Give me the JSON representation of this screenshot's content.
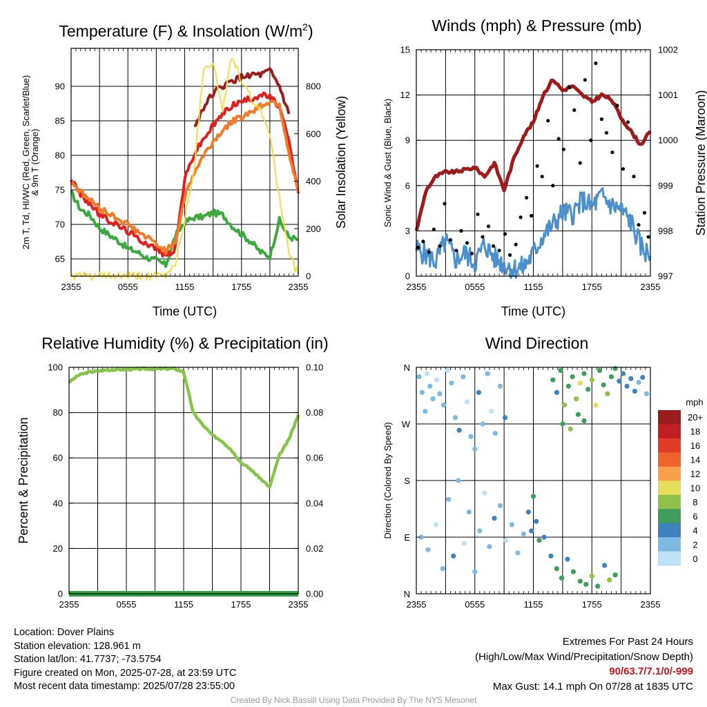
{
  "x_ticks": [
    "2355",
    "0555",
    "1155",
    "1755",
    "2355"
  ],
  "legend_colors": [
    "#9b1c1c",
    "#c21f25",
    "#e23b2a",
    "#f1632c",
    "#f8a14a",
    "#e6de5a",
    "#8fc24a",
    "#3f9e5c",
    "#3f82bf",
    "#7fb9e3",
    "#bde2f5"
  ],
  "chart_data": [
    {
      "type": "line",
      "title": "Temperature (F) & Insolation (W/m²)",
      "title_parts": {
        "main": "Temperature (F) & Insolation (W/m",
        "sup": "2",
        "close": ")"
      },
      "xlabel": "Time (UTC)",
      "ylabel_left_lines": [
        "2m T, Td, HI/WC (Red, Green, Scarlet/Blue)",
        "& 9m T (Orange)"
      ],
      "ylabel_right": "Solar Insolation (Yellow)",
      "ylim_left": [
        62.5,
        95.5
      ],
      "yticks_left": [
        "65",
        "70",
        "75",
        "80",
        "85",
        "90"
      ],
      "ylim_right": [
        0,
        960
      ],
      "yticks_right": [
        "0",
        "200",
        "400",
        "600",
        "800"
      ],
      "x": [
        0,
        1,
        2,
        3,
        4,
        5,
        6,
        7,
        8,
        9,
        10,
        11,
        12,
        13,
        14,
        15,
        16,
        17,
        18,
        19,
        20,
        21,
        22,
        23,
        24
      ],
      "series": [
        {
          "color": "#3ba93d",
          "axis": "left",
          "values": [
            74.6,
            72.2,
            71.3,
            69.5,
            68.5,
            67.6,
            66.5,
            66.0,
            65.2,
            64.8,
            64.1,
            68.3,
            70.3,
            71.0,
            71.1,
            71.7,
            71.4,
            69.8,
            68.6,
            67.5,
            66.0,
            65.4,
            70.6,
            68.2,
            67.8
          ]
        },
        {
          "color": "#e11f1f",
          "axis": "left",
          "values": [
            76.6,
            74.3,
            73.0,
            71.4,
            70.6,
            69.8,
            69.0,
            68.0,
            67.3,
            66.5,
            65.5,
            66.4,
            76.6,
            80.2,
            82.4,
            84.3,
            86.0,
            87.3,
            87.8,
            88.2,
            88.8,
            88.5,
            87.0,
            82.0,
            74.5
          ]
        },
        {
          "color": "#9b1c1c",
          "axis": "left",
          "values": [
            null,
            null,
            null,
            null,
            null,
            null,
            null,
            null,
            null,
            null,
            null,
            null,
            null,
            84.0,
            87.0,
            89.0,
            90.0,
            90.7,
            91.3,
            91.7,
            91.6,
            92.2,
            90.0,
            86.0,
            null
          ]
        },
        {
          "color": "#f27b2b",
          "axis": "left",
          "values": [
            76.3,
            74.7,
            73.6,
            72.3,
            71.6,
            70.8,
            70.0,
            69.0,
            68.1,
            67.2,
            66.2,
            67.3,
            74.0,
            77.5,
            80.0,
            82.0,
            83.6,
            84.9,
            85.6,
            86.3,
            87.2,
            87.8,
            87.5,
            80.5,
            74.6
          ]
        },
        {
          "color": "#f5dc4c",
          "axis": "right",
          "values": [
            0,
            0,
            0,
            0,
            0,
            0,
            0,
            0,
            0,
            0,
            0,
            55,
            230,
            460,
            880,
            900,
            700,
            930,
            820,
            750,
            690,
            610,
            330,
            90,
            10
          ]
        }
      ]
    },
    {
      "type": "line",
      "title": "Winds (mph) & Pressure (mb)",
      "xlabel": "Time (UTC)",
      "ylabel_left": "Sonic Wind & Gust (Blue, Black)",
      "ylabel_right": "Station Pressure (Maroon)",
      "ylim_left": [
        0,
        15
      ],
      "yticks_left": [
        "0",
        "3",
        "6",
        "9",
        "12",
        "15"
      ],
      "ylim_right": [
        997,
        1002
      ],
      "yticks_right": [
        "997",
        "998",
        "999",
        "1000",
        "1001",
        "1002"
      ],
      "x": [
        0,
        1,
        2,
        3,
        4,
        5,
        6,
        7,
        8,
        9,
        10,
        11,
        12,
        13,
        14,
        15,
        16,
        17,
        18,
        19,
        20,
        21,
        22,
        23,
        24
      ],
      "series": [
        {
          "name": "Station Pressure",
          "color": "#9e1b1b",
          "axis": "right",
          "values": [
            998.0,
            998.9,
            999.2,
            999.3,
            999.3,
            999.35,
            999.4,
            999.2,
            999.5,
            998.9,
            999.6,
            1000.1,
            1000.4,
            1001.0,
            1001.35,
            1001.1,
            1001.2,
            1001.0,
            1000.85,
            1001.0,
            1000.9,
            1000.5,
            1000.2,
            999.9,
            1000.2
          ]
        },
        {
          "name": "Sonic Wind",
          "color": "#4b8fcc",
          "axis": "left",
          "values": [
            1.8,
            1.4,
            1.0,
            2.3,
            1.1,
            1.5,
            0.9,
            2.1,
            1.2,
            0.8,
            0.5,
            0.6,
            1.5,
            2.7,
            3.4,
            4.2,
            4.1,
            5.0,
            4.6,
            5.3,
            4.7,
            4.4,
            3.6,
            2.0,
            1.3
          ]
        },
        {
          "name": "Gust",
          "type": "scatter",
          "color": "#000000",
          "axis": "left",
          "x": [
            0.2,
            0.7,
            1.3,
            1.8,
            2.4,
            2.9,
            3.5,
            4.1,
            4.6,
            5.2,
            5.7,
            6.3,
            6.8,
            7.4,
            7.9,
            8.5,
            9.1,
            9.6,
            10.2,
            10.7,
            11.3,
            11.8,
            12.4,
            12.9,
            13.5,
            14.0,
            14.6,
            15.1,
            15.7,
            16.2,
            16.8,
            17.3,
            17.9,
            18.4,
            19.0,
            19.5,
            20.1,
            20.6,
            21.2,
            21.7,
            22.3,
            22.8,
            23.4,
            23.8
          ],
          "values": [
            1.9,
            2.3,
            1.6,
            3.1,
            2.0,
            4.8,
            2.4,
            1.7,
            3.0,
            2.2,
            1.5,
            4.1,
            2.6,
            3.3,
            2.0,
            1.7,
            2.8,
            1.4,
            2.1,
            3.9,
            5.2,
            4.0,
            7.3,
            6.6,
            10.3,
            6.0,
            9.1,
            8.4,
            12.5,
            11.0,
            7.5,
            13.0,
            9.0,
            14.1,
            10.4,
            9.5,
            8.2,
            11.3,
            7.1,
            10.2,
            6.6,
            3.4,
            4.2,
            2.6
          ]
        }
      ]
    },
    {
      "type": "line",
      "title": "Relative Humidity (%) & Precipitation (in)",
      "xlabel": "",
      "ylabel_left": "Percent & Precipitation",
      "ylim_left": [
        0,
        100
      ],
      "yticks_left": [
        "0",
        "20",
        "40",
        "60",
        "80",
        "100"
      ],
      "ylim_right": [
        0,
        0.1
      ],
      "yticks_right": [
        "0.00",
        "0.02",
        "0.04",
        "0.06",
        "0.08",
        "0.10"
      ],
      "x": [
        0,
        1,
        2,
        3,
        4,
        5,
        6,
        7,
        8,
        9,
        10,
        11,
        12,
        13,
        14,
        15,
        16,
        17,
        18,
        19,
        20,
        21,
        22,
        23,
        24
      ],
      "series": [
        {
          "name": "Relative Humidity",
          "color": "#86c44a",
          "axis": "left",
          "values": [
            93.5,
            96.5,
            97.8,
            98.4,
            98.8,
            99.0,
            99.1,
            99.2,
            99.3,
            99.3,
            99.4,
            99.4,
            98.0,
            80.0,
            74.5,
            70.0,
            67.5,
            63.5,
            58.0,
            55.0,
            51.0,
            47.0,
            61.0,
            68.0,
            79.0
          ]
        },
        {
          "name": "Precipitation",
          "color": "#2f9f45",
          "axis": "right",
          "values": [
            0,
            0,
            0,
            0,
            0,
            0,
            0,
            0,
            0,
            0,
            0,
            0,
            0,
            0,
            0,
            0,
            0,
            0,
            0,
            0,
            0,
            0,
            0,
            0,
            0
          ]
        }
      ]
    },
    {
      "type": "scatter",
      "title": "Wind Direction",
      "ylabel_left": "Direction (Colored By Speed)",
      "yticks_left": [
        "N",
        "E",
        "S",
        "W",
        "N"
      ],
      "ylim": [
        0,
        360
      ],
      "colorbar_title": "mph",
      "colorbar_labels": [
        "20+",
        "18",
        "16",
        "14",
        "12",
        "10",
        "8",
        "6",
        "4",
        "2",
        "0"
      ],
      "points": [
        [
          0.3,
          345,
          1
        ],
        [
          0.6,
          320,
          1
        ],
        [
          0.9,
          290,
          1
        ],
        [
          1.1,
          350,
          0
        ],
        [
          1.4,
          330,
          1
        ],
        [
          1.7,
          310,
          1
        ],
        [
          2.1,
          340,
          0
        ],
        [
          2.4,
          318,
          1
        ],
        [
          2.8,
          300,
          1
        ],
        [
          3.2,
          355,
          0
        ],
        [
          3.6,
          335,
          1
        ],
        [
          4.0,
          280,
          1
        ],
        [
          4.4,
          260,
          2
        ],
        [
          4.8,
          345,
          1
        ],
        [
          5.2,
          305,
          0
        ],
        [
          5.6,
          250,
          1
        ],
        [
          6.0,
          230,
          1
        ],
        [
          6.4,
          320,
          2
        ],
        [
          6.8,
          270,
          1
        ],
        [
          7.3,
          350,
          1
        ],
        [
          7.7,
          290,
          0
        ],
        [
          8.1,
          255,
          1
        ],
        [
          8.6,
          330,
          1
        ],
        [
          9.1,
          280,
          2
        ],
        [
          0.5,
          90,
          1
        ],
        [
          1.2,
          70,
          1
        ],
        [
          2.0,
          110,
          0
        ],
        [
          2.7,
          40,
          1
        ],
        [
          3.3,
          150,
          1
        ],
        [
          3.8,
          60,
          2
        ],
        [
          4.3,
          180,
          1
        ],
        [
          4.9,
          80,
          0
        ],
        [
          5.4,
          130,
          1
        ],
        [
          6.0,
          35,
          1
        ],
        [
          6.5,
          100,
          1
        ],
        [
          7.0,
          160,
          0
        ],
        [
          7.5,
          75,
          1
        ],
        [
          8.0,
          120,
          2
        ],
        [
          8.6,
          140,
          1
        ],
        [
          9.2,
          85,
          0
        ],
        [
          9.8,
          110,
          1
        ],
        [
          10.4,
          65,
          1
        ],
        [
          11.0,
          95,
          1
        ],
        [
          11.5,
          130,
          2
        ],
        [
          11.8,
          100,
          2
        ],
        [
          12.0,
          155,
          3
        ],
        [
          12.3,
          115,
          2
        ],
        [
          12.6,
          85,
          3
        ],
        [
          13.1,
          90,
          2
        ],
        [
          13.8,
          60,
          2
        ],
        [
          14.4,
          40,
          3
        ],
        [
          14.9,
          25,
          3
        ],
        [
          15.5,
          55,
          2
        ],
        [
          16.1,
          35,
          3
        ],
        [
          16.8,
          20,
          3
        ],
        [
          17.4,
          15,
          3
        ],
        [
          18.0,
          28,
          4
        ],
        [
          18.6,
          12,
          3
        ],
        [
          19.3,
          45,
          2
        ],
        [
          19.8,
          22,
          4
        ],
        [
          20.4,
          30,
          3
        ],
        [
          14.0,
          340,
          3
        ],
        [
          14.4,
          320,
          2
        ],
        [
          14.8,
          355,
          3
        ],
        [
          15.2,
          300,
          4
        ],
        [
          15.6,
          330,
          3
        ],
        [
          16.0,
          345,
          3
        ],
        [
          16.4,
          310,
          4
        ],
        [
          16.8,
          335,
          5
        ],
        [
          17.2,
          350,
          3
        ],
        [
          17.6,
          325,
          3
        ],
        [
          18.0,
          340,
          4
        ],
        [
          18.4,
          300,
          5
        ],
        [
          18.8,
          355,
          3
        ],
        [
          19.2,
          332,
          3
        ],
        [
          19.6,
          318,
          4
        ],
        [
          20.0,
          345,
          3
        ],
        [
          20.4,
          358,
          3
        ],
        [
          20.8,
          338,
          2
        ],
        [
          21.2,
          350,
          2
        ],
        [
          21.6,
          330,
          2
        ],
        [
          22.0,
          342,
          2
        ],
        [
          22.4,
          322,
          2
        ],
        [
          22.8,
          336,
          1
        ],
        [
          23.2,
          344,
          2
        ],
        [
          23.6,
          318,
          1
        ],
        [
          15.0,
          270,
          3
        ],
        [
          15.8,
          262,
          4
        ],
        [
          16.6,
          285,
          3
        ],
        [
          17.2,
          275,
          3
        ]
      ]
    }
  ],
  "info": {
    "location": "Location: Dover Plains",
    "elevation": "Station elevation: 128.961 m",
    "latlon": "Station lat/lon: 41.7737; -73.5754",
    "created": "Figure created on Mon, 2025-07-28, at 23:59 UTC",
    "recent": "Most recent data timestamp: 2025/07/28 23:55:00"
  },
  "extremes": {
    "title": "Extremes For Past 24 Hours",
    "subtitle": "(High/Low/Max Wind/Precipitation/Snow Depth)",
    "values": "90/63.7/7.1/0/-999",
    "values_color": "#c8161d",
    "gust": "Max Gust: 14.1 mph On 07/28 at 1835 UTC"
  },
  "credit": "Created By Nick Bassill Using Data Provided By The NYS Mesonet"
}
